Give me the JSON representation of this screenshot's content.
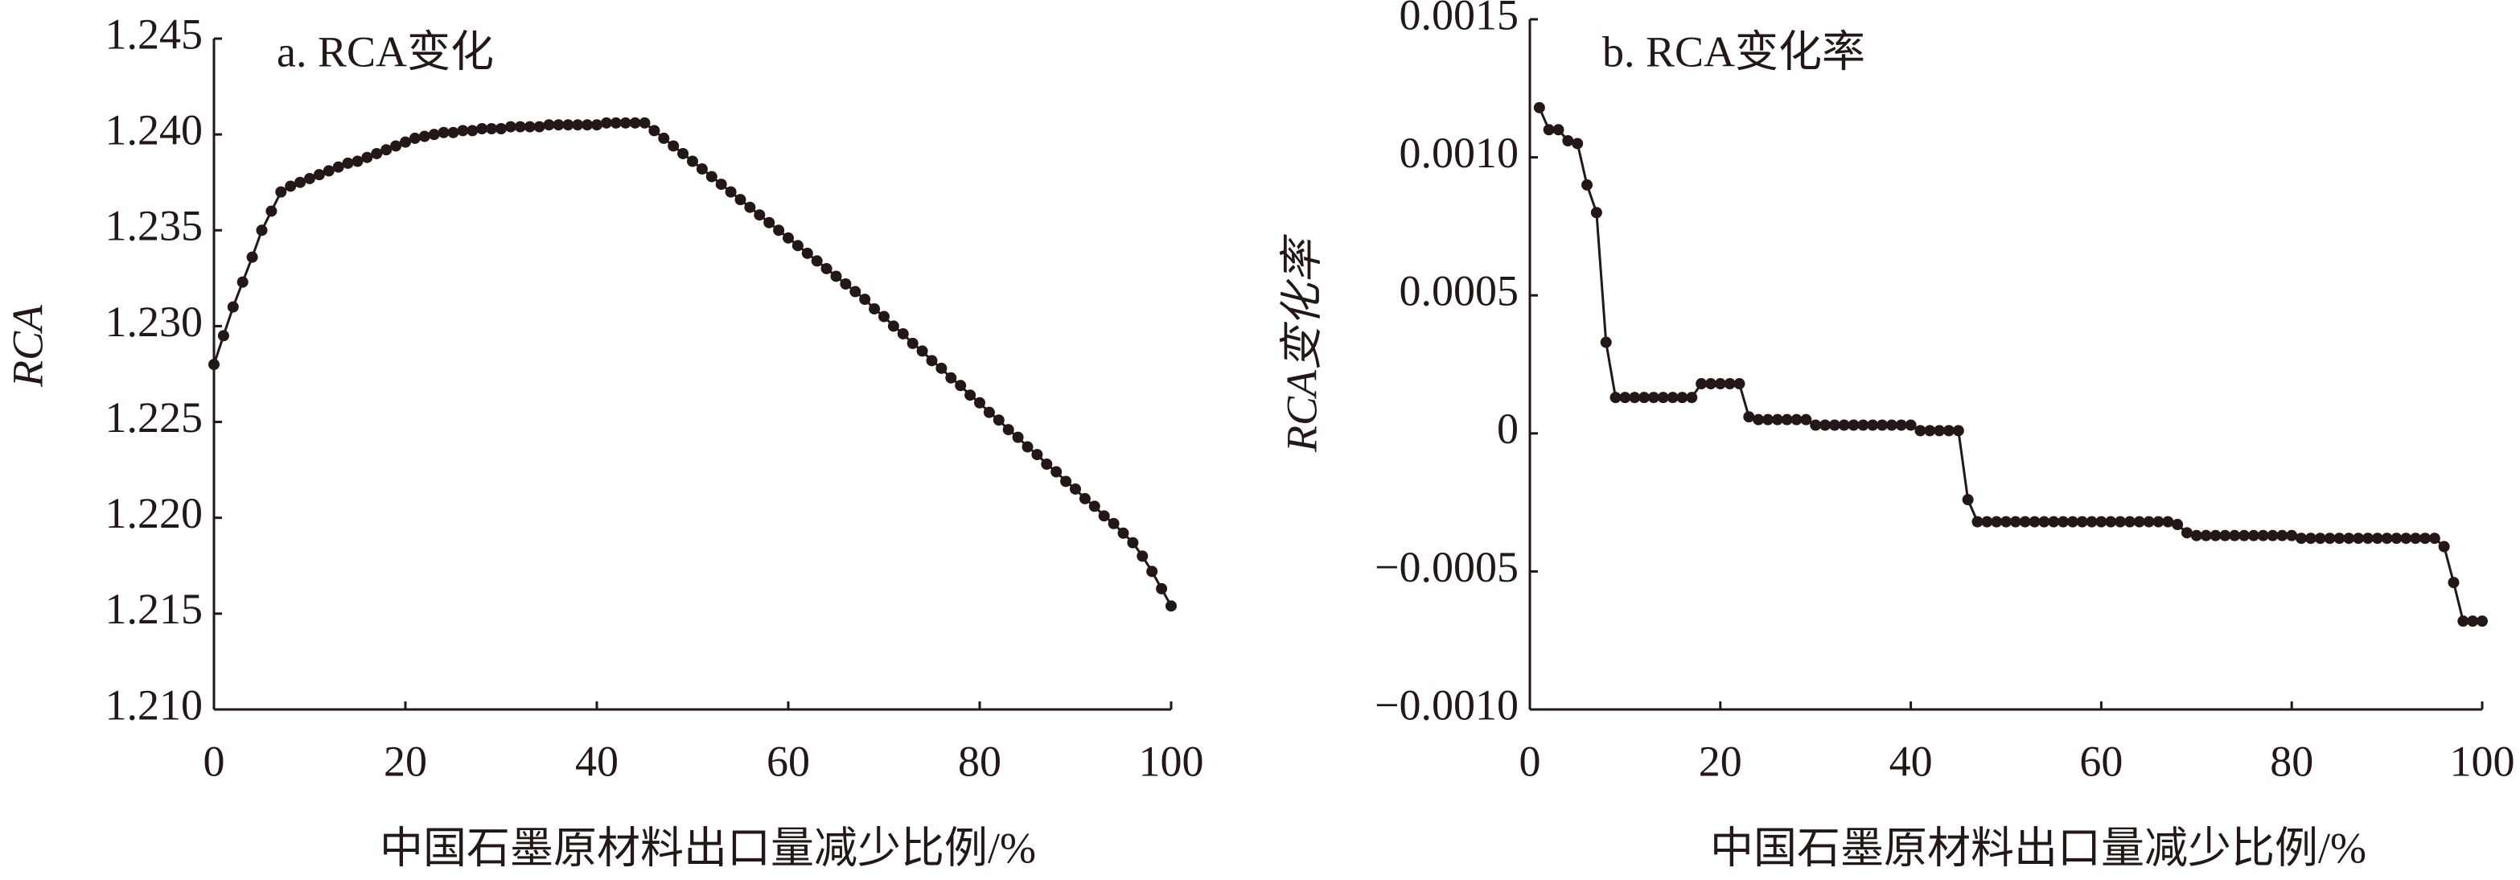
{
  "chart_data": [
    {
      "type": "line",
      "title": "a. RCA变化",
      "xlabel": "中国石墨原材料出口量减少比例/%",
      "ylabel": "RCA",
      "xlim": [
        0,
        100
      ],
      "xticks": [
        0,
        20,
        40,
        60,
        80,
        100
      ],
      "ylim": [
        1.21,
        1.245
      ],
      "yticks": [
        {
          "value": 1.21,
          "label": "1.210"
        },
        1.215,
        {
          "value": 1.22,
          "label": "1.220"
        },
        1.225,
        {
          "value": 1.23,
          "label": "1.230"
        },
        1.235,
        {
          "value": 1.24,
          "label": "1.240"
        },
        1.245
      ],
      "series": [
        {
          "color": "#231815",
          "x": [
            0,
            1,
            2,
            3,
            4,
            5,
            6,
            7,
            8,
            9,
            10,
            11,
            12,
            13,
            14,
            15,
            16,
            17,
            18,
            19,
            20,
            21,
            22,
            23,
            24,
            25,
            26,
            27,
            28,
            29,
            30,
            31,
            32,
            33,
            34,
            35,
            36,
            37,
            38,
            39,
            40,
            41,
            42,
            43,
            44,
            45,
            46,
            47,
            48,
            49,
            50,
            51,
            52,
            53,
            54,
            55,
            56,
            57,
            58,
            59,
            60,
            61,
            62,
            63,
            64,
            65,
            66,
            67,
            68,
            69,
            70,
            71,
            72,
            73,
            74,
            75,
            76,
            77,
            78,
            79,
            80,
            81,
            82,
            83,
            84,
            85,
            86,
            87,
            88,
            89,
            90,
            91,
            92,
            93,
            94,
            95,
            96,
            97,
            98,
            99,
            100
          ],
          "values": [
            1.228,
            1.2295,
            1.231,
            1.2323,
            1.2336,
            1.235,
            1.236,
            1.237,
            1.2373,
            1.2375,
            1.2377,
            1.2379,
            1.2381,
            1.2383,
            1.2385,
            1.2386,
            1.2388,
            1.239,
            1.2392,
            1.2394,
            1.2396,
            1.2398,
            1.2399,
            1.24,
            1.2401,
            1.2401,
            1.2402,
            1.2402,
            1.2403,
            1.2403,
            1.2403,
            1.2404,
            1.2404,
            1.2404,
            1.2404,
            1.2405,
            1.2405,
            1.2405,
            1.2405,
            1.2405,
            1.2405,
            1.2406,
            1.2406,
            1.2406,
            1.2406,
            1.2406,
            1.2402,
            1.2398,
            1.2394,
            1.239,
            1.2386,
            1.2382,
            1.2378,
            1.2374,
            1.237,
            1.2366,
            1.2362,
            1.2358,
            1.2354,
            1.235,
            1.2346,
            1.2342,
            1.2338,
            1.2334,
            1.233,
            1.2326,
            1.2322,
            1.2318,
            1.2314,
            1.2309,
            1.2305,
            1.23,
            1.2296,
            1.2291,
            1.2287,
            1.2282,
            1.2278,
            1.2273,
            1.2269,
            1.2264,
            1.226,
            1.2255,
            1.2251,
            1.2246,
            1.2242,
            1.2237,
            1.2233,
            1.2228,
            1.2224,
            1.2219,
            1.2215,
            1.221,
            1.2206,
            1.2201,
            1.2197,
            1.2192,
            1.2187,
            1.218,
            1.2172,
            1.2163,
            1.2154
          ]
        }
      ]
    },
    {
      "type": "line",
      "title": "b. RCA变化率",
      "xlabel": "中国石墨原材料出口量减少比例/%",
      "ylabel": "RCA变化率",
      "xlim": [
        0,
        100
      ],
      "xticks": [
        0,
        20,
        40,
        60,
        80,
        100
      ],
      "ylim": [
        -0.001,
        0.0015
      ],
      "yticks": [
        {
          "value": -0.001,
          "label": "−0.0010"
        },
        {
          "value": -0.0005,
          "label": "−0.0005"
        },
        0,
        0.0005,
        {
          "value": 0.001,
          "label": "0.0010"
        },
        0.0015
      ],
      "series": [
        {
          "color": "#231815",
          "x": [
            1,
            2,
            3,
            4,
            5,
            6,
            7,
            8,
            9,
            10,
            11,
            12,
            13,
            14,
            15,
            16,
            17,
            18,
            19,
            20,
            21,
            22,
            23,
            24,
            25,
            26,
            27,
            28,
            29,
            30,
            31,
            32,
            33,
            34,
            35,
            36,
            37,
            38,
            39,
            40,
            41,
            42,
            43,
            44,
            45,
            46,
            47,
            48,
            49,
            50,
            51,
            52,
            53,
            54,
            55,
            56,
            57,
            58,
            59,
            60,
            61,
            62,
            63,
            64,
            65,
            66,
            67,
            68,
            69,
            70,
            71,
            72,
            73,
            74,
            75,
            76,
            77,
            78,
            79,
            80,
            81,
            82,
            83,
            84,
            85,
            86,
            87,
            88,
            89,
            90,
            91,
            92,
            93,
            94,
            95,
            96,
            97,
            98,
            99,
            100
          ],
          "values": [
            0.00118,
            0.0011,
            0.0011,
            0.00106,
            0.00105,
            0.0009,
            0.0008,
            0.00033,
            0.00013,
            0.00013,
            0.00013,
            0.00013,
            0.00013,
            0.00013,
            0.00013,
            0.00013,
            0.00013,
            0.00018,
            0.00018,
            0.00018,
            0.00018,
            0.00018,
            6e-05,
            5e-05,
            5e-05,
            5e-05,
            5e-05,
            5e-05,
            5e-05,
            3e-05,
            3e-05,
            3e-05,
            3e-05,
            3e-05,
            3e-05,
            3e-05,
            3e-05,
            3e-05,
            3e-05,
            3e-05,
            1e-05,
            1e-05,
            1e-05,
            1e-05,
            1e-05,
            -0.00024,
            -0.00032,
            -0.00032,
            -0.00032,
            -0.00032,
            -0.00032,
            -0.00032,
            -0.00032,
            -0.00032,
            -0.00032,
            -0.00032,
            -0.00032,
            -0.00032,
            -0.00032,
            -0.00032,
            -0.00032,
            -0.00032,
            -0.00032,
            -0.00032,
            -0.00032,
            -0.00032,
            -0.00032,
            -0.00033,
            -0.00036,
            -0.00037,
            -0.00037,
            -0.00037,
            -0.00037,
            -0.00037,
            -0.00037,
            -0.00037,
            -0.00037,
            -0.00037,
            -0.00037,
            -0.00037,
            -0.00038,
            -0.00038,
            -0.00038,
            -0.00038,
            -0.00038,
            -0.00038,
            -0.00038,
            -0.00038,
            -0.00038,
            -0.00038,
            -0.00038,
            -0.00038,
            -0.00038,
            -0.00038,
            -0.00038,
            -0.00041,
            -0.00054,
            -0.00068,
            -0.00068,
            -0.00068
          ]
        }
      ]
    }
  ]
}
